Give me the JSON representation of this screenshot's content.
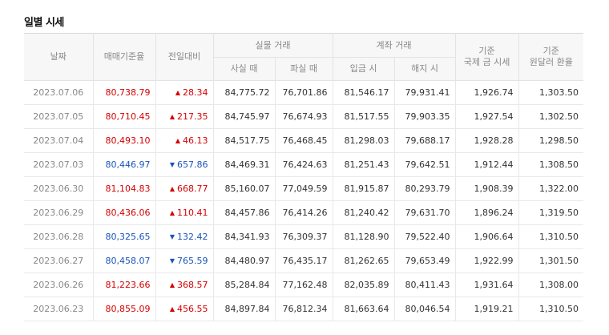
{
  "section": {
    "title": "일별 시세"
  },
  "headers": {
    "date": "날짜",
    "base_rate": "매매기준율",
    "change": "전일대비",
    "cash_group": "실물 거래",
    "cash_buy": "사실 때",
    "cash_sell": "파실 때",
    "transfer_group": "계좌 거래",
    "deposit": "입금 시",
    "withdraw": "해지 시",
    "intl_price": "기준\n국제 금 시세",
    "usd_rate": "기준\n원달러 환율"
  },
  "colors": {
    "up": "#d60000",
    "down": "#1a53b8",
    "up_arrow": "up-triangle-icon",
    "down_arrow": "down-triangle-icon"
  },
  "rows": [
    {
      "date": "2023.07.06",
      "base_rate": "80,738.79",
      "dir": "up",
      "arrow": "▲",
      "change": "28.34",
      "cash_buy": "84,775.72",
      "cash_sell": "76,701.86",
      "deposit": "81,546.17",
      "withdraw": "79,931.41",
      "intl_price": "1,926.74",
      "usd_rate": "1,303.50"
    },
    {
      "date": "2023.07.05",
      "base_rate": "80,710.45",
      "dir": "up",
      "arrow": "▲",
      "change": "217.35",
      "cash_buy": "84,745.97",
      "cash_sell": "76,674.93",
      "deposit": "81,517.55",
      "withdraw": "79,903.35",
      "intl_price": "1,927.54",
      "usd_rate": "1,302.50"
    },
    {
      "date": "2023.07.04",
      "base_rate": "80,493.10",
      "dir": "up",
      "arrow": "▲",
      "change": "46.13",
      "cash_buy": "84,517.75",
      "cash_sell": "76,468.45",
      "deposit": "81,298.03",
      "withdraw": "79,688.17",
      "intl_price": "1,928.28",
      "usd_rate": "1,298.50"
    },
    {
      "date": "2023.07.03",
      "base_rate": "80,446.97",
      "dir": "down",
      "arrow": "▼",
      "change": "657.86",
      "cash_buy": "84,469.31",
      "cash_sell": "76,424.63",
      "deposit": "81,251.43",
      "withdraw": "79,642.51",
      "intl_price": "1,912.44",
      "usd_rate": "1,308.50"
    },
    {
      "date": "2023.06.30",
      "base_rate": "81,104.83",
      "dir": "up",
      "arrow": "▲",
      "change": "668.77",
      "cash_buy": "85,160.07",
      "cash_sell": "77,049.59",
      "deposit": "81,915.87",
      "withdraw": "80,293.79",
      "intl_price": "1,908.39",
      "usd_rate": "1,322.00"
    },
    {
      "date": "2023.06.29",
      "base_rate": "80,436.06",
      "dir": "up",
      "arrow": "▲",
      "change": "110.41",
      "cash_buy": "84,457.86",
      "cash_sell": "76,414.26",
      "deposit": "81,240.42",
      "withdraw": "79,631.70",
      "intl_price": "1,896.24",
      "usd_rate": "1,319.50"
    },
    {
      "date": "2023.06.28",
      "base_rate": "80,325.65",
      "dir": "down",
      "arrow": "▼",
      "change": "132.42",
      "cash_buy": "84,341.93",
      "cash_sell": "76,309.37",
      "deposit": "81,128.90",
      "withdraw": "79,522.40",
      "intl_price": "1,906.64",
      "usd_rate": "1,310.50"
    },
    {
      "date": "2023.06.27",
      "base_rate": "80,458.07",
      "dir": "down",
      "arrow": "▼",
      "change": "765.59",
      "cash_buy": "84,480.97",
      "cash_sell": "76,435.17",
      "deposit": "81,262.65",
      "withdraw": "79,653.49",
      "intl_price": "1,922.99",
      "usd_rate": "1,301.50"
    },
    {
      "date": "2023.06.26",
      "base_rate": "81,223.66",
      "dir": "up",
      "arrow": "▲",
      "change": "368.57",
      "cash_buy": "85,284.84",
      "cash_sell": "77,162.48",
      "deposit": "82,035.89",
      "withdraw": "80,411.43",
      "intl_price": "1,931.64",
      "usd_rate": "1,308.00"
    },
    {
      "date": "2023.06.23",
      "base_rate": "80,855.09",
      "dir": "up",
      "arrow": "▲",
      "change": "456.55",
      "cash_buy": "84,897.84",
      "cash_sell": "76,812.34",
      "deposit": "81,663.64",
      "withdraw": "80,046.54",
      "intl_price": "1,919.21",
      "usd_rate": "1,310.50"
    }
  ]
}
